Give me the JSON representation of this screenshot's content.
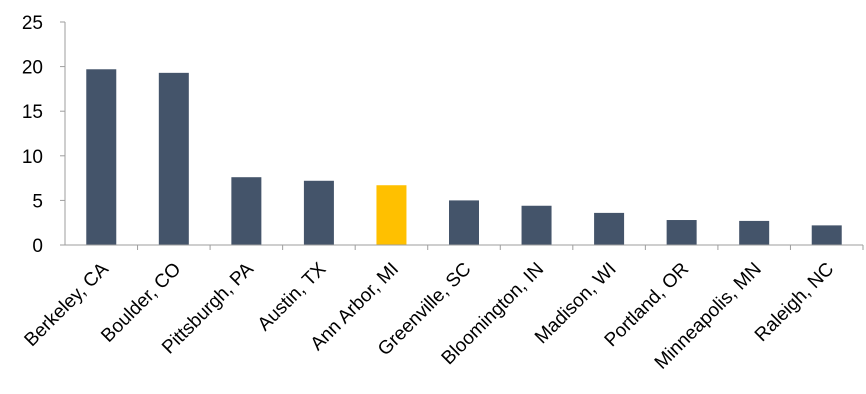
{
  "chart_data": {
    "type": "bar",
    "categories": [
      "Berkeley, CA",
      "Boulder, CO",
      "Pittsburgh, PA",
      "Austin, TX",
      "Ann Arbor, MI",
      "Greenville, SC",
      "Bloomington, IN",
      "Madison, WI",
      "Portland, OR",
      "Minneapolis, MN",
      "Raleigh, NC"
    ],
    "values": [
      19.7,
      19.3,
      7.6,
      7.2,
      6.7,
      5.0,
      4.4,
      3.6,
      2.8,
      2.7,
      2.2
    ],
    "highlight_index": 4,
    "colors": {
      "bar": "#44546a",
      "highlight": "#ffc000",
      "axis": "#9e9e9e"
    },
    "yticks": [
      0,
      5,
      10,
      15,
      20,
      25
    ],
    "ylim": [
      0,
      25
    ],
    "title": "",
    "xlabel": "",
    "ylabel": "",
    "grid": false,
    "legend": "none"
  }
}
